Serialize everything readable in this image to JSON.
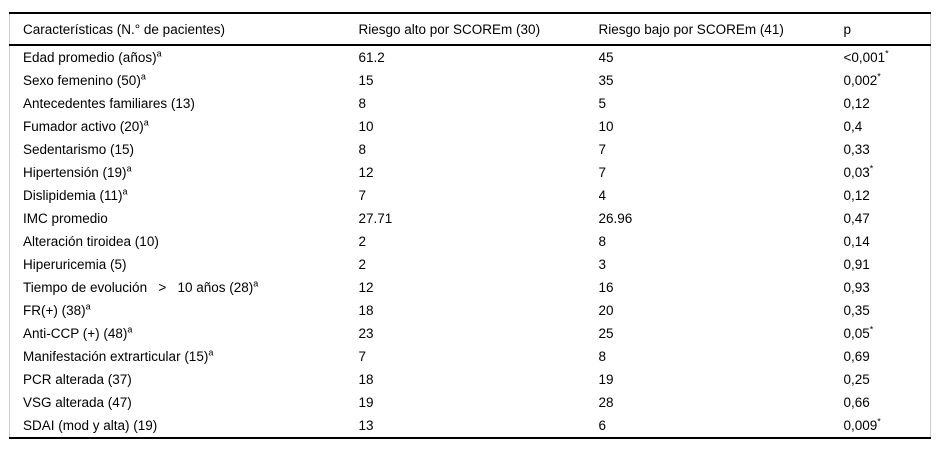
{
  "table": {
    "columns": [
      {
        "label": "Características (N.° de pacientes)"
      },
      {
        "label": "Riesgo alto por SCOREm (30)"
      },
      {
        "label": "Riesgo bajo por SCOREm (41)"
      },
      {
        "label": "p"
      }
    ],
    "rows": [
      {
        "label": "Edad promedio (años)",
        "sup": "a",
        "alto": "61.2",
        "bajo": "45",
        "p": "<0,001",
        "p_sup": "*"
      },
      {
        "label": "Sexo femenino (50)",
        "sup": "a",
        "alto": "15",
        "bajo": "35",
        "p": "0,002",
        "p_sup": "*"
      },
      {
        "label": "Antecedentes familiares (13)",
        "sup": "",
        "alto": "8",
        "bajo": "5",
        "p": "0,12",
        "p_sup": ""
      },
      {
        "label": "Fumador activo (20)",
        "sup": "a",
        "alto": "10",
        "bajo": "10",
        "p": "0,4",
        "p_sup": ""
      },
      {
        "label": "Sedentarismo (15)",
        "sup": "",
        "alto": "8",
        "bajo": "7",
        "p": "0,33",
        "p_sup": ""
      },
      {
        "label": "Hipertensión (19)",
        "sup": "a",
        "alto": "12",
        "bajo": "7",
        "p": "0,03",
        "p_sup": "*"
      },
      {
        "label": "Dislipidemia (11)",
        "sup": "a",
        "alto": "7",
        "bajo": "4",
        "p": "0,12",
        "p_sup": ""
      },
      {
        "label": "IMC promedio",
        "sup": "",
        "alto": "27.71",
        "bajo": "26.96",
        "p": "0,47",
        "p_sup": ""
      },
      {
        "label": "Alteración tiroidea (10)",
        "sup": "",
        "alto": "2",
        "bajo": "8",
        "p": "0,14",
        "p_sup": ""
      },
      {
        "label": "Hiperuricemia (5)",
        "sup": "",
        "alto": "2",
        "bajo": "3",
        "p": "0,91",
        "p_sup": ""
      },
      {
        "label": "Tiempo de evolución   >   10 años (28)",
        "sup": "a",
        "alto": "12",
        "bajo": "16",
        "p": "0,93",
        "p_sup": ""
      },
      {
        "label": "FR(+) (38)",
        "sup": "a",
        "alto": "18",
        "bajo": "20",
        "p": "0,35",
        "p_sup": ""
      },
      {
        "label": "Anti-CCP (+) (48)",
        "sup": "a",
        "alto": "23",
        "bajo": "25",
        "p": "0,05",
        "p_sup": "*"
      },
      {
        "label": "Manifestación extrarticular (15)",
        "sup": "a",
        "alto": "7",
        "bajo": "8",
        "p": "0,69",
        "p_sup": ""
      },
      {
        "label": "PCR alterada (37)",
        "sup": "",
        "alto": "18",
        "bajo": "19",
        "p": "0,25",
        "p_sup": ""
      },
      {
        "label": "VSG alterada (47)",
        "sup": "",
        "alto": "19",
        "bajo": "28",
        "p": "0,66",
        "p_sup": ""
      },
      {
        "label": "SDAI (mod y alta) (19)",
        "sup": "",
        "alto": "13",
        "bajo": "6",
        "p": "0,009",
        "p_sup": "*"
      }
    ]
  },
  "colors": {
    "text": "#000000",
    "heavy_rule": "#000000",
    "side_rule": "#cccccc",
    "background": "#ffffff"
  }
}
